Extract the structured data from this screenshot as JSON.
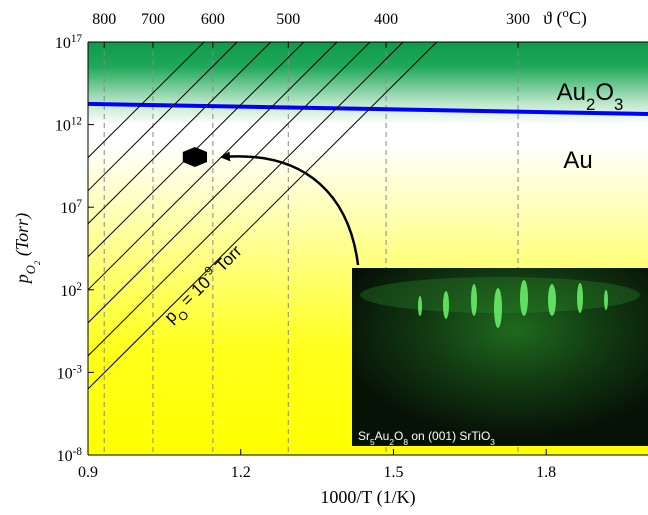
{
  "chart_data": {
    "type": "line",
    "xlabel": "1000/T (1/K)",
    "ylabel": "p_{O_{2}} (Torr)",
    "x2label": "ϑ (^{o}C)",
    "xlim": [
      0.9,
      2.0
    ],
    "xticks": [
      0.9,
      1.2,
      1.5,
      1.8
    ],
    "ylim": [
      1e-08,
      1e+17
    ],
    "yscale": "log",
    "yticks": [
      {
        "value": 1e+17,
        "label": "10^{17}"
      },
      {
        "value": 1000000000000.0,
        "label": "10^{12}"
      },
      {
        "value": 10000000.0,
        "label": "10^{7}"
      },
      {
        "value": 100,
        "label": "10^{2}"
      },
      {
        "value": 0.001,
        "label": "10^{-3}"
      },
      {
        "value": 1e-08,
        "label": "10^{-8}"
      }
    ],
    "x2ticks": [
      800,
      700,
      600,
      500,
      400,
      300
    ],
    "x2grid": true,
    "series": [
      {
        "style": "line",
        "color": "#0000ff",
        "x": [
          0.9,
          2.0
        ],
        "values": [
          18000000000000.0,
          4400000000000.0
        ]
      },
      {
        "style": "line",
        "color": "#000000",
        "x": [
          0.9,
          1.585
        ],
        "values": [
          0.0001,
          1e+17
        ]
      },
      {
        "style": "line",
        "color": "#000000",
        "x": [
          0.9,
          1.519
        ],
        "values": [
          0.01,
          1e+17
        ]
      },
      {
        "style": "line",
        "color": "#000000",
        "x": [
          0.9,
          1.454
        ],
        "values": [
          1,
          1e+17
        ]
      },
      {
        "style": "line",
        "color": "#000000",
        "x": [
          0.9,
          1.389
        ],
        "values": [
          100,
          1e+17
        ]
      },
      {
        "style": "line",
        "color": "#000000",
        "x": [
          0.9,
          1.324
        ],
        "values": [
          10000,
          1e+17
        ]
      },
      {
        "style": "line",
        "color": "#000000",
        "x": [
          0.9,
          1.259
        ],
        "values": [
          1000000,
          1e+17
        ]
      },
      {
        "style": "line",
        "color": "#000000",
        "x": [
          0.9,
          1.193
        ],
        "values": [
          100000000,
          1e+17
        ]
      },
      {
        "style": "line",
        "color": "#000000",
        "x": [
          0.9,
          1.128
        ],
        "values": [
          10000000000,
          1e+17
        ]
      },
      {
        "style": "hexagon",
        "color": "#000000",
        "x": [
          1.11
        ],
        "values": [
          11000000000
        ]
      }
    ],
    "annotations": [
      "Au_{2}O_{3}",
      "Au",
      "p_{O} = 10^{-9} Torr",
      "Sr_{5}Au_{2}O_{8} on (001) SrTiO_{3}"
    ]
  }
}
